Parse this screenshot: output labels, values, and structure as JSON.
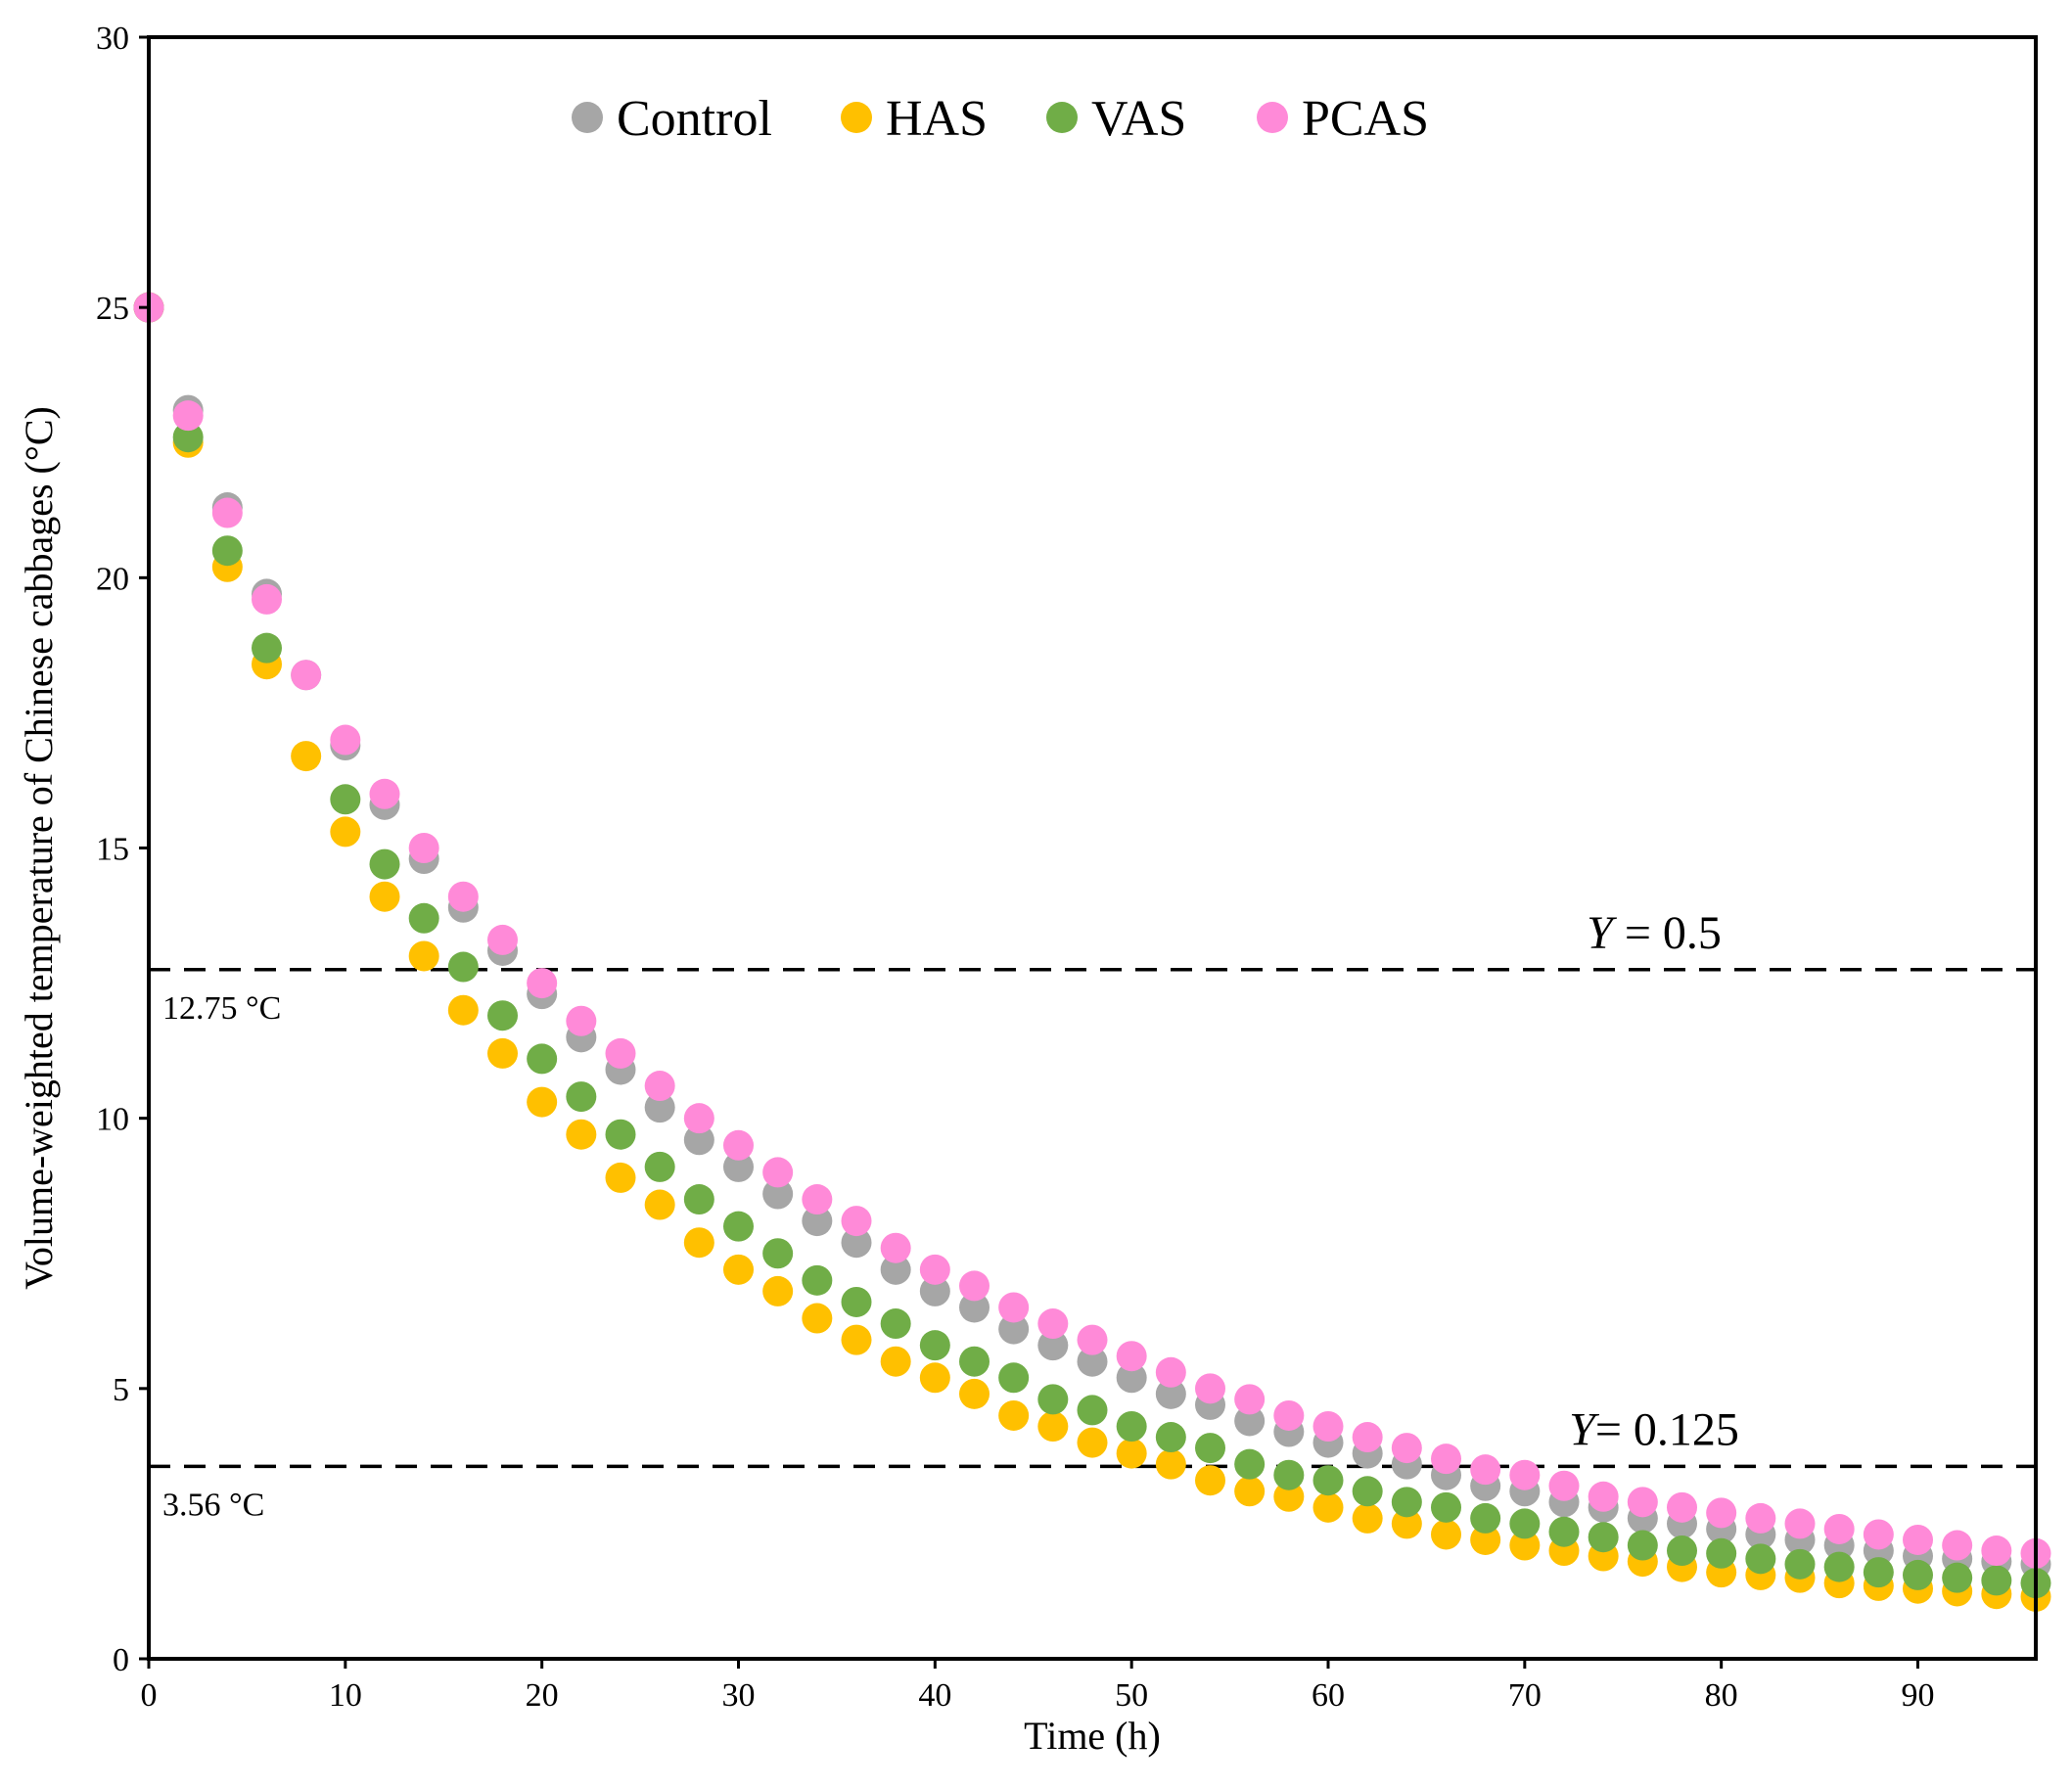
{
  "chart_data": {
    "type": "scatter",
    "title": "",
    "xlabel": "Time (h)",
    "ylabel": "Volume-weighted temperature of Chinese cabbages (°C)",
    "xlim": [
      0,
      96
    ],
    "ylim": [
      0,
      30
    ],
    "xticks": [
      "0",
      "10",
      "20",
      "30",
      "40",
      "50",
      "60",
      "70",
      "80",
      "90"
    ],
    "yticks": [
      "0",
      "5",
      "10",
      "15",
      "20",
      "25",
      "30"
    ],
    "legend_position": "top-center",
    "x": [
      0,
      2,
      4,
      6,
      8,
      10,
      12,
      14,
      16,
      18,
      20,
      22,
      24,
      26,
      28,
      30,
      32,
      34,
      36,
      38,
      40,
      42,
      44,
      46,
      48,
      50,
      52,
      54,
      56,
      58,
      60,
      62,
      64,
      66,
      68,
      70,
      72,
      74,
      76,
      78,
      80,
      82,
      84,
      86,
      88,
      90,
      92,
      94,
      96
    ],
    "series": [
      {
        "name": "Control",
        "color": "#a6a6a6",
        "values": [
          25.0,
          23.1,
          21.3,
          19.7,
          18.2,
          16.9,
          15.8,
          14.8,
          13.9,
          13.1,
          12.3,
          11.5,
          10.9,
          10.2,
          9.6,
          9.1,
          8.6,
          8.1,
          7.7,
          7.2,
          6.8,
          6.5,
          6.1,
          5.8,
          5.5,
          5.2,
          4.9,
          4.7,
          4.4,
          4.2,
          4.0,
          3.8,
          3.6,
          3.4,
          3.2,
          3.1,
          2.9,
          2.8,
          2.6,
          2.5,
          2.4,
          2.3,
          2.2,
          2.1,
          2.0,
          1.9,
          1.85,
          1.8,
          1.75
        ]
      },
      {
        "name": "HAS",
        "color": "#ffc000",
        "values": [
          25.0,
          22.5,
          20.2,
          18.4,
          16.7,
          15.3,
          14.1,
          13.0,
          12.0,
          11.2,
          10.3,
          9.7,
          8.9,
          8.4,
          7.7,
          7.2,
          6.8,
          6.3,
          5.9,
          5.5,
          5.2,
          4.9,
          4.5,
          4.3,
          4.0,
          3.8,
          3.6,
          3.3,
          3.1,
          3.0,
          2.8,
          2.6,
          2.5,
          2.3,
          2.2,
          2.1,
          2.0,
          1.9,
          1.8,
          1.7,
          1.6,
          1.55,
          1.5,
          1.4,
          1.35,
          1.3,
          1.25,
          1.2,
          1.15
        ]
      },
      {
        "name": "VAS",
        "color": "#70ad47",
        "values": [
          25.0,
          22.6,
          20.5,
          18.7,
          null,
          15.9,
          14.7,
          13.7,
          12.8,
          11.9,
          11.1,
          10.4,
          9.7,
          9.1,
          8.5,
          8.0,
          7.5,
          7.0,
          6.6,
          6.2,
          5.8,
          5.5,
          5.2,
          4.8,
          4.6,
          4.3,
          4.1,
          3.9,
          3.6,
          3.4,
          3.3,
          3.1,
          2.9,
          2.8,
          2.6,
          2.5,
          2.35,
          2.25,
          2.1,
          2.0,
          1.95,
          1.85,
          1.75,
          1.7,
          1.6,
          1.55,
          1.5,
          1.45,
          1.4
        ]
      },
      {
        "name": "PCAS",
        "color": "#ff8ad8",
        "values": [
          25.0,
          23.0,
          21.2,
          19.6,
          18.2,
          17.0,
          16.0,
          15.0,
          14.1,
          13.3,
          12.5,
          11.8,
          11.2,
          10.6,
          10.0,
          9.5,
          9.0,
          8.5,
          8.1,
          7.6,
          7.2,
          6.9,
          6.5,
          6.2,
          5.9,
          5.6,
          5.3,
          5.0,
          4.8,
          4.5,
          4.3,
          4.1,
          3.9,
          3.7,
          3.5,
          3.4,
          3.2,
          3.0,
          2.9,
          2.8,
          2.7,
          2.6,
          2.5,
          2.4,
          2.3,
          2.2,
          2.1,
          2.0,
          1.95
        ]
      }
    ],
    "reference_lines": [
      {
        "y": 12.75,
        "label_italic": "Y",
        "label_rest": " = 0.5",
        "value_text": "12.75 °C"
      },
      {
        "y": 3.56,
        "label_italic": "Y",
        "label_rest": "= 0.125",
        "value_text": "3.56 °C"
      }
    ]
  }
}
